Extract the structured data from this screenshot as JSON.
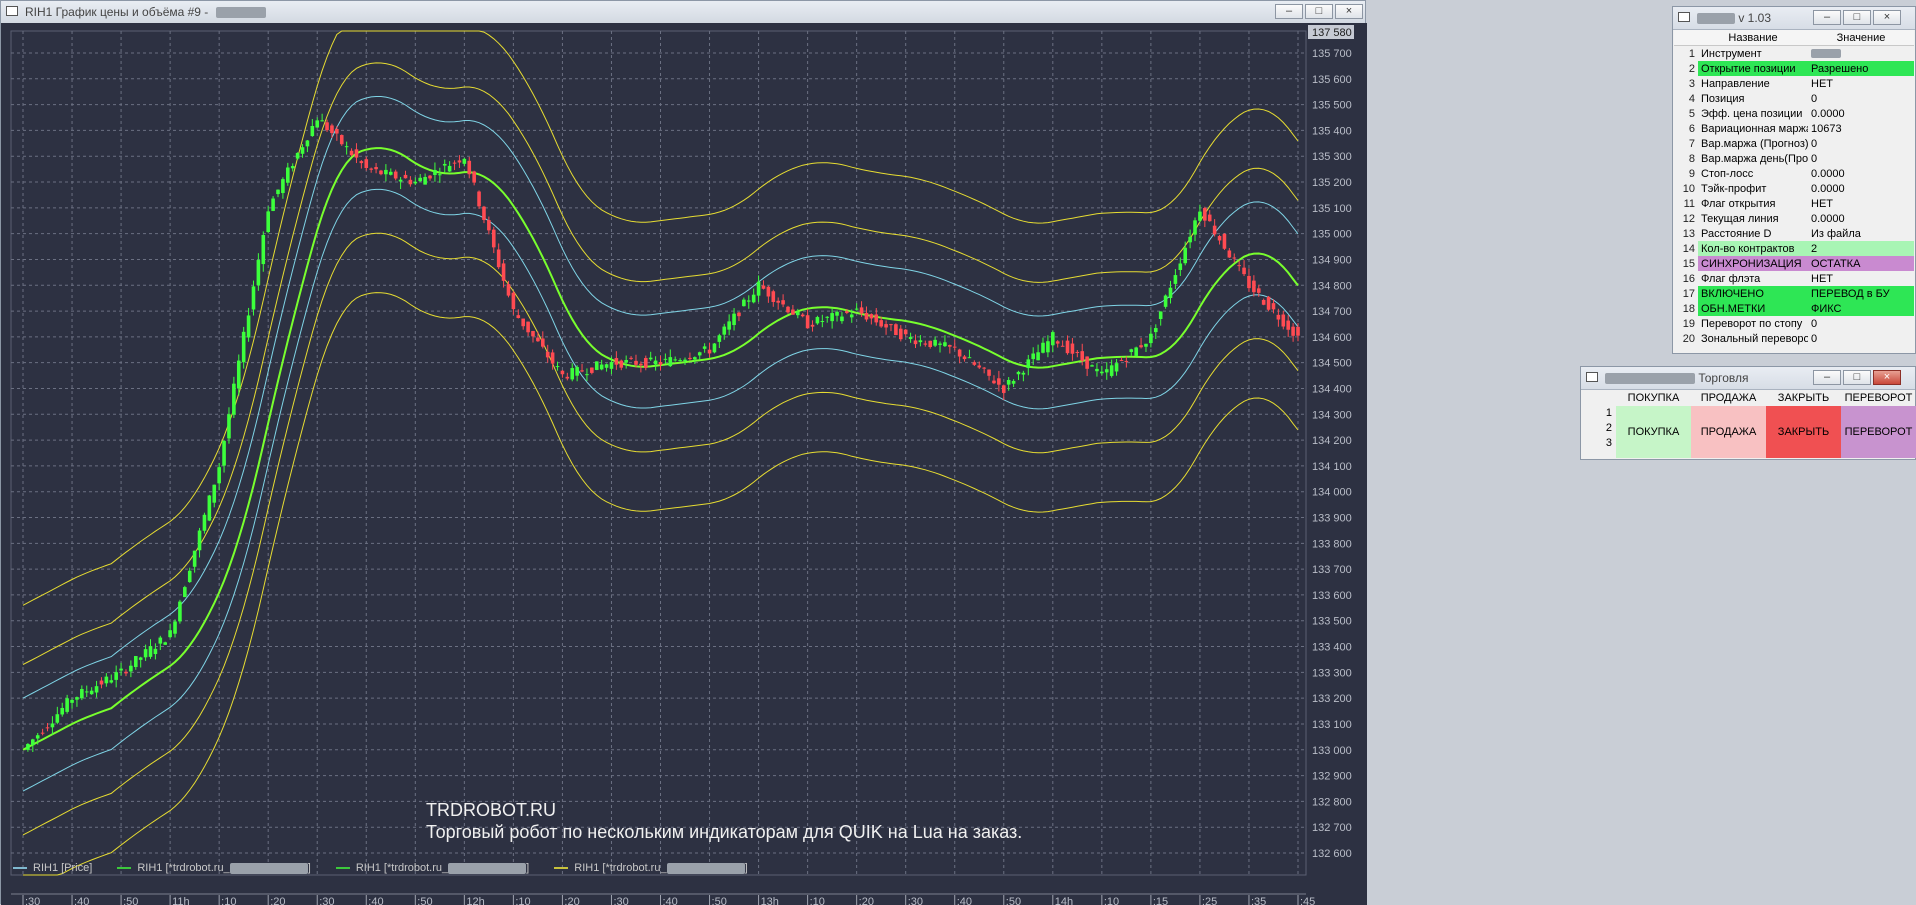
{
  "chart_window": {
    "title": "RIH1 График цены и объёма #9 -",
    "price_badge": "137 580",
    "y_ticks": [
      "135 700",
      "135 600",
      "135 500",
      "135 400",
      "135 300",
      "135 200",
      "135 100",
      "135 000",
      "134 900",
      "134 800",
      "134 700",
      "134 600",
      "134 500",
      "134 400",
      "134 300",
      "134 200",
      "134 100",
      "134 000",
      "133 900",
      "133 800",
      "133 700",
      "133 600",
      "133 500",
      "133 400",
      "133 300",
      "133 200",
      "133 100",
      "133 000",
      "132 900",
      "132 800",
      "132 700",
      "132 600"
    ],
    "x_ticks": [
      ":30",
      ":40",
      ":50",
      "11h",
      ":10",
      ":20",
      ":30",
      ":40",
      ":50",
      "12h",
      ":10",
      ":20",
      ":30",
      ":40",
      ":50",
      "13h",
      ":10",
      ":20",
      ":30",
      ":40",
      ":50",
      "14h",
      ":10",
      ":15",
      ":25",
      ":35",
      ":45"
    ],
    "legend": [
      {
        "label": "RIH1 [Price]",
        "color": "#7fb8cf"
      },
      {
        "label": "RIH1 [*trdrobot.ru_",
        "color": "#3cc83c"
      },
      {
        "label": "RIH1 [*trdrobot.ru_",
        "color": "#3cc83c"
      },
      {
        "label": "RIH1 [*trdrobot.ru_",
        "color": "#c8c23c"
      }
    ],
    "watermark_line1": "TRDROBOT.RU",
    "watermark_line2": "Торговый робот по нескольким индикаторам для QUIK на Lua на заказ.",
    "colors": {
      "background": "#2d3142",
      "bull": "#3cff3c",
      "bear": "#ff4b52",
      "middle_band": "#78ff2e",
      "inner_band": "#7fd4e6",
      "outer_band": "#e6dc32"
    }
  },
  "param_window": {
    "title_suffix": "v 1.03",
    "col_name": "Название",
    "col_value": "Значение",
    "rows": [
      {
        "n": "1",
        "name": "Инструмент",
        "value": "",
        "hl": ""
      },
      {
        "n": "2",
        "name": "Открытие позиции",
        "value": "Разрешено",
        "hl": "green"
      },
      {
        "n": "3",
        "name": "Направление",
        "value": "НЕТ",
        "hl": ""
      },
      {
        "n": "4",
        "name": "Позиция",
        "value": "0",
        "hl": ""
      },
      {
        "n": "5",
        "name": "Эфф. цена позиции",
        "value": "0.0000",
        "hl": ""
      },
      {
        "n": "6",
        "name": "Вариационная маржа",
        "value": "10673",
        "hl": ""
      },
      {
        "n": "7",
        "name": "Вар.маржа (Прогноз)",
        "value": "0",
        "hl": ""
      },
      {
        "n": "8",
        "name": "Вар.маржа день(Прогноз)",
        "value": "0",
        "hl": ""
      },
      {
        "n": "9",
        "name": "Стоп-лосс",
        "value": "0.0000",
        "hl": ""
      },
      {
        "n": "10",
        "name": "Тэйк-профит",
        "value": "0.0000",
        "hl": ""
      },
      {
        "n": "11",
        "name": "Флаг открытия",
        "value": "НЕТ",
        "hl": ""
      },
      {
        "n": "12",
        "name": "Текущая линия",
        "value": "0.0000",
        "hl": ""
      },
      {
        "n": "13",
        "name": "Расстояние D",
        "value": "Из файла",
        "hl": ""
      },
      {
        "n": "14",
        "name": "Кол-во контрактов",
        "value": "2",
        "hl": "lightgreen"
      },
      {
        "n": "15",
        "name": "СИНХРОНИЗАЦИЯ",
        "value": "ОСТАТКА",
        "hl": "pink"
      },
      {
        "n": "16",
        "name": "Флаг флэта",
        "value": "НЕТ",
        "hl": ""
      },
      {
        "n": "17",
        "name": "ВКЛЮЧЕНО",
        "value": "ПЕРЕВОД в БУ",
        "hl": "green"
      },
      {
        "n": "18",
        "name": "ОБН.МЕТКИ",
        "value": "ФИКС",
        "hl": "green"
      },
      {
        "n": "19",
        "name": "Переворот по стопу",
        "value": "0",
        "hl": ""
      },
      {
        "n": "20",
        "name": "Зональный переворот",
        "value": "0",
        "hl": ""
      }
    ]
  },
  "trade_window": {
    "title": "Торговля",
    "headers": [
      "ПОКУПКА",
      "ПРОДАЖА",
      "ЗАКРЫТЬ",
      "ПЕРЕВОРОТ"
    ],
    "row_numbers": [
      "1",
      "2",
      "3"
    ],
    "buttons": [
      "ПОКУПКА",
      "ПРОДАЖА",
      "ЗАКРЫТЬ",
      "ПЕРЕВОРОТ"
    ]
  },
  "chart_data": {
    "type": "line",
    "series": [
      {
        "name": "RIH1 [Price]",
        "x": [
          0,
          10,
          20,
          30,
          40,
          50,
          60,
          70,
          80,
          90,
          100,
          110,
          120,
          130,
          140,
          150,
          160,
          170,
          180,
          190,
          200,
          210,
          220,
          230,
          240,
          250,
          260
        ],
        "y": [
          133000,
          133200,
          133300,
          133450,
          134100,
          135100,
          135450,
          135250,
          135200,
          135300,
          134700,
          134450,
          134500,
          134500,
          134550,
          134800,
          134650,
          134700,
          134600,
          134550,
          134400,
          134600,
          134450,
          134600,
          135100,
          134800,
          134600
        ]
      }
    ]
  }
}
